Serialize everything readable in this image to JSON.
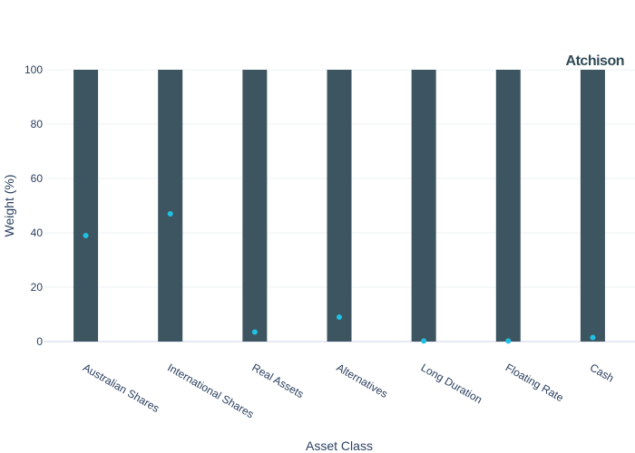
{
  "logo_text": "Atchison",
  "colors": {
    "bar": "#3d5560",
    "marker": "#1fc1e3",
    "grid": "#eef1f6",
    "zeroline": "#e6e9f2",
    "text": "#2a3f5f"
  },
  "chart_data": {
    "type": "bar",
    "categories": [
      "Australian Shares",
      "International Shares",
      "Real Assets",
      "Alternatives",
      "Long Duration",
      "Floating Rate",
      "Cash"
    ],
    "series": [
      {
        "type": "bar",
        "values": [
          100,
          100,
          100,
          100,
          100,
          100,
          100
        ]
      },
      {
        "type": "scatter",
        "values": [
          39,
          47,
          3.5,
          9,
          0.2,
          0.2,
          1.5
        ]
      }
    ],
    "xlabel": "Asset Class",
    "ylabel": "Weight (%)",
    "ylim": [
      0,
      100
    ],
    "yticks": [
      0,
      20,
      40,
      60,
      80,
      100
    ],
    "grid": true,
    "legend": "none"
  }
}
